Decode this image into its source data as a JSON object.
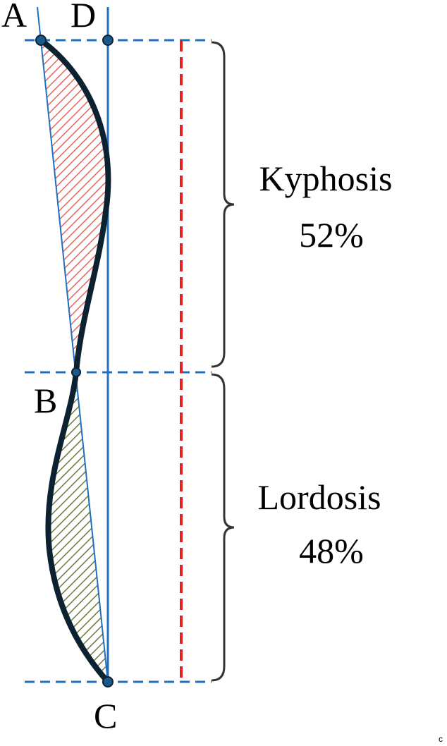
{
  "points": {
    "a": "A",
    "d": "D",
    "b": "B",
    "c": "C"
  },
  "sections": [
    {
      "name": "Kyphosis",
      "share": "52%"
    },
    {
      "name": "Lordosis",
      "share": "48%"
    }
  ],
  "corner_mark": "c"
}
